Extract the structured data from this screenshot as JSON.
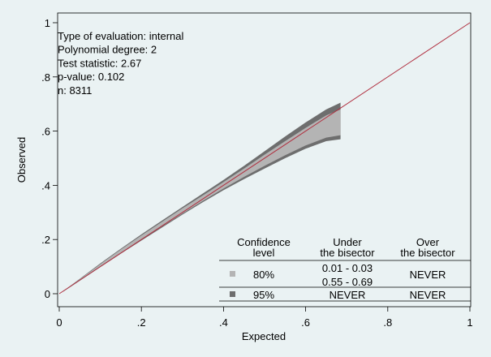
{
  "chart_data": {
    "type": "area",
    "xlabel": "Expected",
    "ylabel": "Observed",
    "xlim": [
      0,
      1
    ],
    "ylim": [
      0,
      1
    ],
    "x_ticks": [
      {
        "value": 0,
        "label": "0"
      },
      {
        "value": 0.2,
        "label": ".2"
      },
      {
        "value": 0.4,
        "label": ".4"
      },
      {
        "value": 0.6,
        "label": ".6"
      },
      {
        "value": 0.8,
        "label": ".8"
      },
      {
        "value": 1,
        "label": "1"
      }
    ],
    "y_ticks": [
      {
        "value": 0,
        "label": "0"
      },
      {
        "value": 0.2,
        "label": ".2"
      },
      {
        "value": 0.4,
        "label": ".4"
      },
      {
        "value": 0.6,
        "label": ".6"
      },
      {
        "value": 0.8,
        "label": ".8"
      },
      {
        "value": 1,
        "label": "1"
      }
    ],
    "grid": false,
    "annotations": [
      "Type of evaluation: internal",
      "Polynomial degree: 2",
      "Test statistic: 2.67",
      "p-value: 0.102",
      "n: 8311"
    ],
    "bisector": {
      "x": [
        0,
        1
      ],
      "y": [
        0,
        1
      ],
      "color": "#b03040"
    },
    "series": [
      {
        "level": "95%",
        "color": "#6e6e6e",
        "x": [
          0.01,
          0.05,
          0.1,
          0.15,
          0.2,
          0.25,
          0.3,
          0.35,
          0.4,
          0.45,
          0.5,
          0.55,
          0.6,
          0.65,
          0.685
        ],
        "upper": [
          0.01,
          0.055,
          0.112,
          0.166,
          0.219,
          0.27,
          0.32,
          0.37,
          0.42,
          0.472,
          0.526,
          0.58,
          0.632,
          0.68,
          0.705
        ],
        "lower": [
          0.008,
          0.048,
          0.098,
          0.148,
          0.196,
          0.244,
          0.292,
          0.338,
          0.382,
          0.423,
          0.462,
          0.5,
          0.535,
          0.563,
          0.57
        ]
      },
      {
        "level": "80%",
        "color": "#b4b4b4",
        "x": [
          0.01,
          0.05,
          0.1,
          0.15,
          0.2,
          0.25,
          0.3,
          0.35,
          0.4,
          0.45,
          0.5,
          0.55,
          0.6,
          0.65,
          0.685
        ],
        "upper": [
          0.01,
          0.053,
          0.109,
          0.163,
          0.215,
          0.265,
          0.315,
          0.363,
          0.412,
          0.462,
          0.513,
          0.563,
          0.612,
          0.658,
          0.68
        ],
        "lower": [
          0.009,
          0.05,
          0.101,
          0.151,
          0.2,
          0.248,
          0.296,
          0.343,
          0.388,
          0.431,
          0.472,
          0.511,
          0.547,
          0.576,
          0.585
        ]
      }
    ],
    "legend": {
      "position": "bottom-right",
      "headers": [
        [
          "Confidence",
          "level"
        ],
        [
          "Under",
          "the bisector"
        ],
        [
          "Over",
          "the bisector"
        ]
      ],
      "rows": [
        {
          "level": "80%",
          "color": "#b4b4b4",
          "under": [
            "0.01 - 0.03",
            "0.55 - 0.69"
          ],
          "over": "NEVER"
        },
        {
          "level": "95%",
          "color": "#6e6e6e",
          "under": [
            "NEVER"
          ],
          "over": "NEVER"
        }
      ]
    }
  }
}
